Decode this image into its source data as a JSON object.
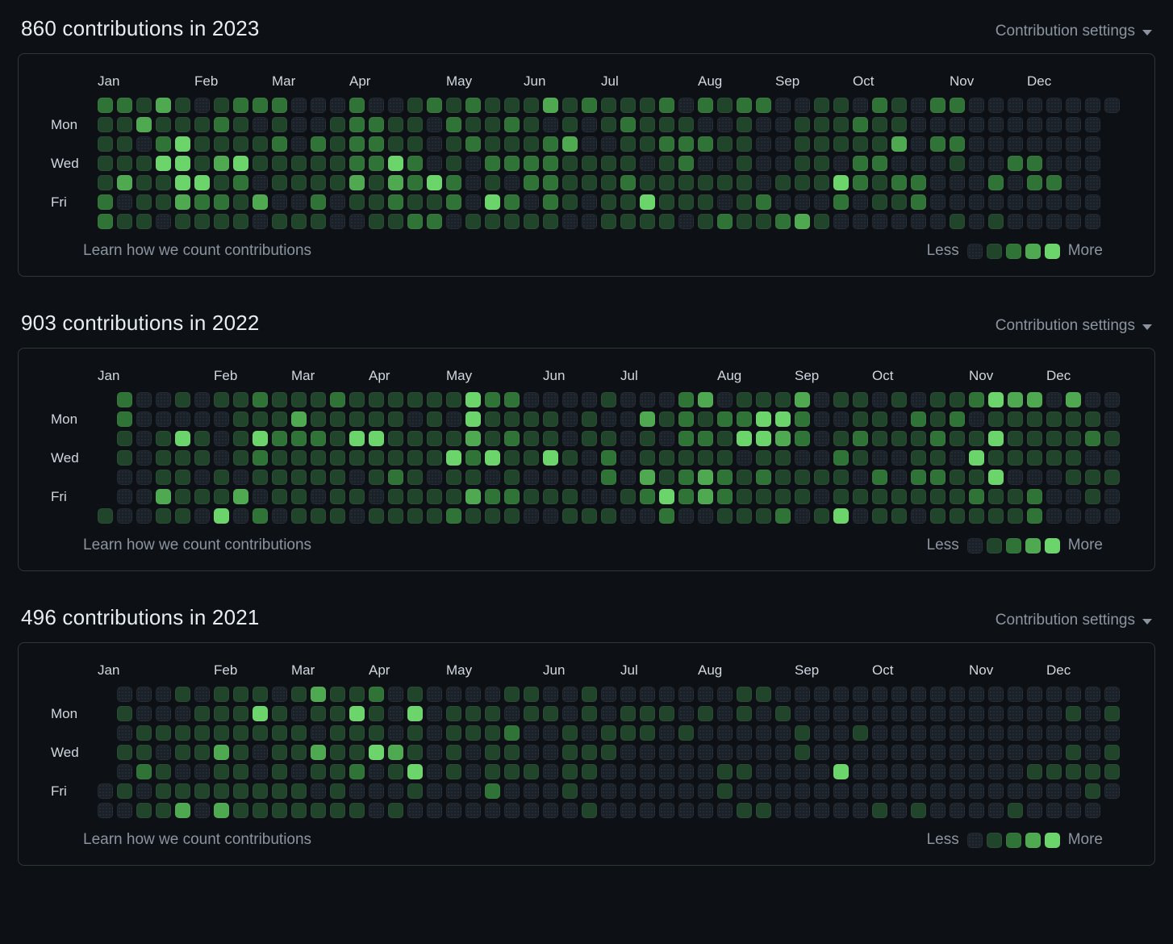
{
  "palette": {
    "bg": "#0d1116",
    "panel_bg": "#0d1116",
    "panel_border": "#2c3a33",
    "text": "#e6edf3",
    "label": "#d0d7de",
    "muted": "#8b949e",
    "levels": [
      "#1a2129",
      "#21452b",
      "#2f7336",
      "#4ea951",
      "#6bd46b"
    ]
  },
  "sections": [
    {
      "title": "860 contributions in 2023",
      "settings_label": "Contribution settings",
      "learn_link": "Learn how we count contributions",
      "legend_less": "Less",
      "legend_more": "More",
      "day_labels": [
        "Mon",
        "Wed",
        "Fri"
      ],
      "months": [
        {
          "label": "Jan",
          "col": 0
        },
        {
          "label": "Feb",
          "col": 5
        },
        {
          "label": "Mar",
          "col": 9
        },
        {
          "label": "Apr",
          "col": 13
        },
        {
          "label": "May",
          "col": 18
        },
        {
          "label": "Jun",
          "col": 22
        },
        {
          "label": "Jul",
          "col": 26
        },
        {
          "label": "Aug",
          "col": 31
        },
        {
          "label": "Sep",
          "col": 35
        },
        {
          "label": "Oct",
          "col": 39
        },
        {
          "label": "Nov",
          "col": 44
        },
        {
          "label": "Dec",
          "col": 48
        }
      ],
      "weeks": [
        "2111122",
        "2111301",
        "1301111",
        "3124110",
        "1144431",
        "0111421",
        "1213121",
        "2114211",
        "2011030",
        "2121101",
        "0001101",
        "0021121",
        "0111100",
        "2222310",
        "0222111",
        "0114321",
        "1112212",
        "2000412",
        "1211220",
        "2120001",
        "1112141",
        "1212021",
        "1112201",
        "3022221",
        "1131110",
        "2001100",
        "1101111",
        "1211211",
        "1110141",
        "2121111",
        "0122110",
        "2020111",
        "1010102",
        "2111111",
        "2000021",
        "0000102",
        "0111103",
        "1111101",
        "1110420",
        "0212200",
        "2112110",
        "1130210",
        "0000220",
        "2020000",
        "2021001",
        "0000000",
        "0000201",
        "0002000",
        "0002200",
        "0000200",
        "0000000",
        "0000000",
        "0......"
      ]
    },
    {
      "title": "903 contributions in 2022",
      "settings_label": "Contribution settings",
      "learn_link": "Learn how we count contributions",
      "legend_less": "Less",
      "legend_more": "More",
      "day_labels": [
        "Mon",
        "Wed",
        "Fri"
      ],
      "months": [
        {
          "label": "Jan",
          "col": 0
        },
        {
          "label": "Feb",
          "col": 6
        },
        {
          "label": "Mar",
          "col": 10
        },
        {
          "label": "Apr",
          "col": 14
        },
        {
          "label": "May",
          "col": 18
        },
        {
          "label": "Jun",
          "col": 23
        },
        {
          "label": "Jul",
          "col": 27
        },
        {
          "label": "Aug",
          "col": 32
        },
        {
          "label": "Sep",
          "col": 36
        },
        {
          "label": "Oct",
          "col": 40
        },
        {
          "label": "Nov",
          "col": 45
        },
        {
          "label": "Dec",
          "col": 49
        }
      ],
      "weeks": [
        "......1",
        "2211000",
        "0000000",
        "0011131",
        "1041111",
        "0011010",
        "1000114",
        "1111030",
        "2142102",
        "1121110",
        "1321111",
        "1121101",
        "2111111",
        "1141010",
        "1141101",
        "1111211",
        "1011111",
        "1111011",
        "1014112",
        "4432131",
        "2114021",
        "2121121",
        "0111010",
        "0114010",
        "0001011",
        "0110001",
        "1012201",
        "0000010",
        "0311320",
        "0101142",
        "2221220",
        "3121330",
        "0211221",
        "1240111",
        "1441211",
        "1431112",
        "3220110",
        "0000101",
        "1012114",
        "1121010",
        "0110211",
        "1010011",
        "0211210",
        "1121211",
        "1210111",
        "2014121",
        "4141411",
        "3111011",
        "3111022",
        "0111000",
        "3111100",
        "0120110",
        "0010100"
      ]
    },
    {
      "title": "496 contributions in 2021",
      "settings_label": "Contribution settings",
      "learn_link": "Learn how we count contributions",
      "legend_less": "Less",
      "legend_more": "More",
      "day_labels": [
        "Mon",
        "Wed",
        "Fri"
      ],
      "months": [
        {
          "label": "Jan",
          "col": 0
        },
        {
          "label": "Feb",
          "col": 6
        },
        {
          "label": "Mar",
          "col": 10
        },
        {
          "label": "Apr",
          "col": 14
        },
        {
          "label": "May",
          "col": 18
        },
        {
          "label": "Jun",
          "col": 23
        },
        {
          "label": "Jul",
          "col": 27
        },
        {
          "label": "Aug",
          "col": 31
        },
        {
          "label": "Sep",
          "col": 36
        },
        {
          "label": "Oct",
          "col": 40
        },
        {
          "label": "Nov",
          "col": 45
        },
        {
          "label": "Dec",
          "col": 49
        }
      ],
      "weeks": [
        ".....00",
        "0101010",
        "0011201",
        "0010111",
        "1011013",
        "0111010",
        "1113113",
        "1111111",
        "1410011",
        "0111111",
        "1011011",
        "3103101",
        "1111111",
        "1411201",
        "2114000",
        "0003101",
        "1411410",
        "0000000",
        "0111100",
        "0110000",
        "0111120",
        "1021100",
        "1100100",
        "0100000",
        "0011110",
        "1101101",
        "0011000",
        "0110000",
        "0110000",
        "0100000",
        "0010000",
        "0100000",
        "0000110",
        "1100101",
        "1000001",
        "0100000",
        "0011000",
        "0000000",
        "0000400",
        "0010000",
        "0000001",
        "0000000",
        "0000001",
        "0000000",
        "0000000",
        "0000000",
        "0000000",
        "0000001",
        "0000100",
        "0000100",
        "0101100",
        "0000110",
        "010110."
      ]
    }
  ]
}
